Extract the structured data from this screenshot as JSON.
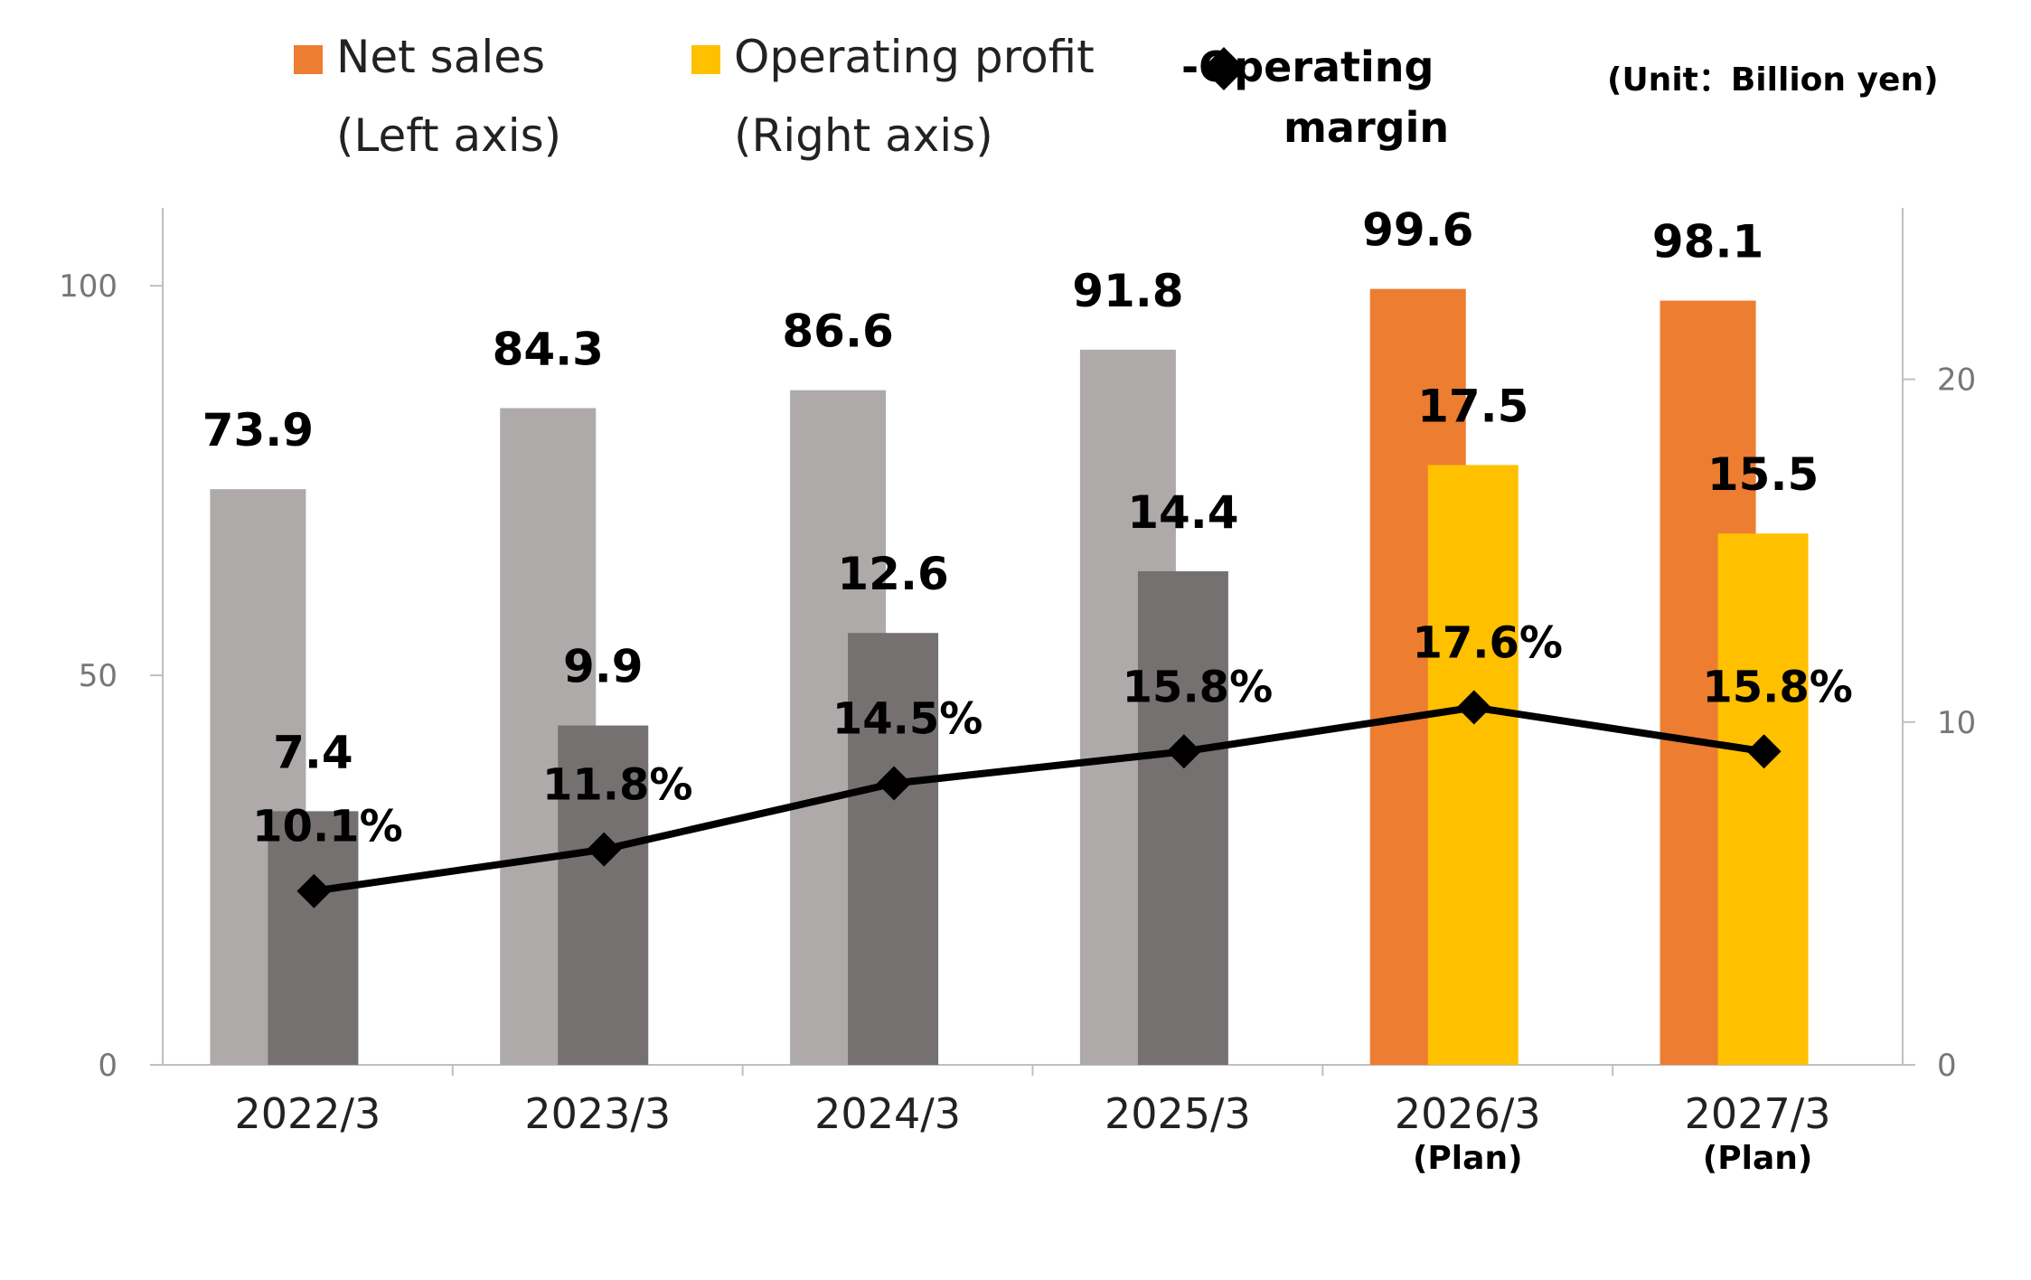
{
  "legend": {
    "net_sales_line1": "Net sales",
    "net_sales_line2": "(Left axis)",
    "op_profit_line1": "Operating profit",
    "op_profit_line2": "(Right axis)",
    "margin_line1": "-Operating",
    "margin_line2": "margin",
    "unit": "(Unit：Billion yen)"
  },
  "colors": {
    "sales_actual": "#AEAAAA",
    "profit_actual": "#767171",
    "sales_plan": "#ED7D31",
    "profit_plan": "#FFC000",
    "margin_line": "#000000",
    "axis": "#BFBFBF"
  },
  "chart_data": {
    "type": "bar",
    "categories": [
      "2022/3",
      "2023/3",
      "2024/3",
      "2025/3",
      "2026/3",
      "2027/3"
    ],
    "category_notes": [
      "",
      "",
      "",
      "",
      "(Plan)",
      "(Plan)"
    ],
    "plan_flags": [
      false,
      false,
      false,
      false,
      true,
      true
    ],
    "left_axis": {
      "ylim": [
        0,
        110
      ],
      "ticks": [
        0,
        50,
        100
      ]
    },
    "right_axis": {
      "ylim": [
        0,
        25
      ],
      "ticks": [
        0,
        10,
        20
      ]
    },
    "series": [
      {
        "name": "Net sales",
        "axis": "left",
        "kind": "bar",
        "values": [
          73.9,
          84.3,
          86.6,
          91.8,
          99.6,
          98.1
        ],
        "labels": [
          "73.9",
          "84.3",
          "86.6",
          "91.8",
          "99.6",
          "98.1"
        ]
      },
      {
        "name": "Operating profit",
        "axis": "right",
        "kind": "bar",
        "values": [
          7.4,
          9.9,
          12.6,
          14.4,
          17.5,
          15.5
        ],
        "labels": [
          "7.4",
          "9.9",
          "12.6",
          "14.4",
          "17.5",
          "15.5"
        ]
      },
      {
        "name": "Operating margin",
        "axis": "none",
        "kind": "line",
        "values": [
          10.1,
          11.8,
          14.5,
          15.8,
          17.6,
          15.8
        ],
        "labels": [
          "10.1%",
          "11.8%",
          "14.5%",
          "15.8%",
          "17.6%",
          "15.8%"
        ]
      }
    ]
  }
}
